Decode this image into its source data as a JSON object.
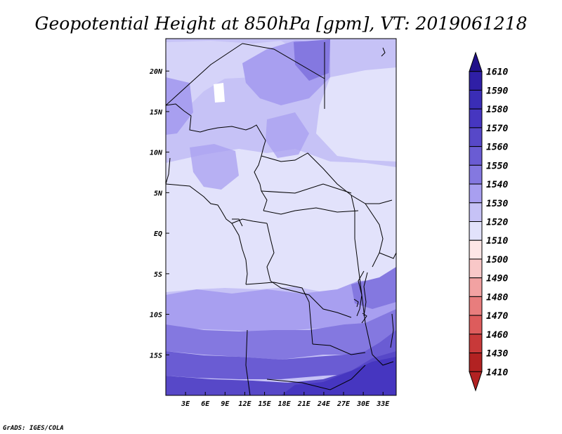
{
  "title": "Geopotential Height at 850hPa [gpm], VT: 2019061218",
  "credit": "GrADS: IGES/COLA",
  "chart_data": {
    "type": "heatmap",
    "variable": "Geopotential Height at 850hPa",
    "units": "gpm",
    "valid_time": "2019061218",
    "lon_range": [
      0,
      35
    ],
    "lat_range": [
      -20,
      24
    ],
    "x_ticks": [
      "3E",
      "6E",
      "9E",
      "12E",
      "15E",
      "18E",
      "21E",
      "24E",
      "27E",
      "30E",
      "33E"
    ],
    "y_ticks": [
      "20N",
      "15N",
      "10N",
      "5N",
      "EQ",
      "5S",
      "10S",
      "15S"
    ],
    "colorbar": {
      "levels": [
        "1610",
        "1590",
        "1580",
        "1570",
        "1560",
        "1550",
        "1540",
        "1530",
        "1520",
        "1510",
        "1500",
        "1490",
        "1480",
        "1470",
        "1460",
        "1430",
        "1410"
      ],
      "colors": [
        "#21108a",
        "#2f1fa6",
        "#3a2db6",
        "#4636c0",
        "#5748c8",
        "#6a5cd3",
        "#8478e0",
        "#a89ff0",
        "#c6c2f6",
        "#e2e2fb",
        "#fde6e6",
        "#f9c8c8",
        "#f2a2a2",
        "#e87d7d",
        "#dd5c5c",
        "#c83939",
        "#b22222"
      ],
      "orientation": "vertical",
      "position": "right",
      "arrow_ends": true
    }
  }
}
